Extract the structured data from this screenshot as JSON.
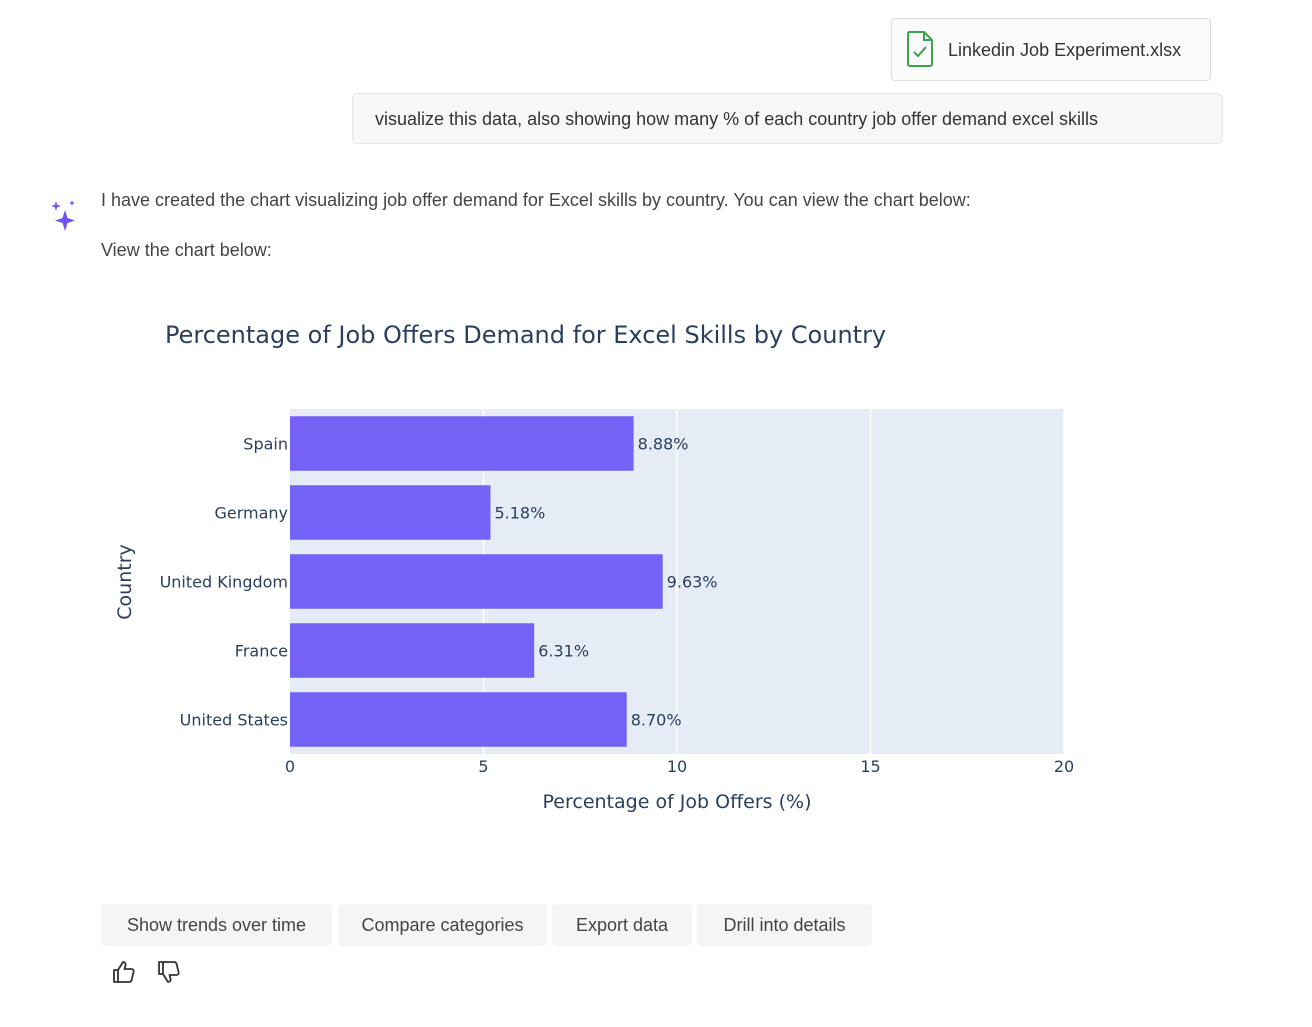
{
  "attachment": {
    "file_name": "Linkedin Job Experiment.xlsx",
    "icon": "file-check-icon"
  },
  "user_message": "visualize this data, also showing how many % of each country job offer demand excel skills",
  "assistant": {
    "icon": "sparkles-icon",
    "text_1": "I have created the chart visualizing job offer demand for Excel skills by country. You can view the chart below:",
    "text_2": "View the chart below:"
  },
  "chart_data": {
    "type": "bar",
    "orientation": "horizontal",
    "title": "Percentage of Job Offers Demand for Excel Skills by Country",
    "xlabel": "Percentage of Job Offers (%)",
    "ylabel": "Country",
    "categories": [
      "Spain",
      "Germany",
      "United Kingdom",
      "France",
      "United States"
    ],
    "values": [
      8.88,
      5.18,
      9.63,
      6.31,
      8.7
    ],
    "data_labels": [
      "8.88%",
      "5.18%",
      "9.63%",
      "6.31%",
      "8.70%"
    ],
    "xlim": [
      0,
      20
    ],
    "xticks": [
      0,
      5,
      10,
      15,
      20
    ],
    "grid": true,
    "bar_color": "#7462f7",
    "plot_bg": "#e5ecf6"
  },
  "suggestions": [
    "Show trends over time",
    "Compare categories",
    "Export data",
    "Drill into details"
  ],
  "feedback": {
    "like_icon": "thumbs-up-icon",
    "dislike_icon": "thumbs-down-icon"
  }
}
